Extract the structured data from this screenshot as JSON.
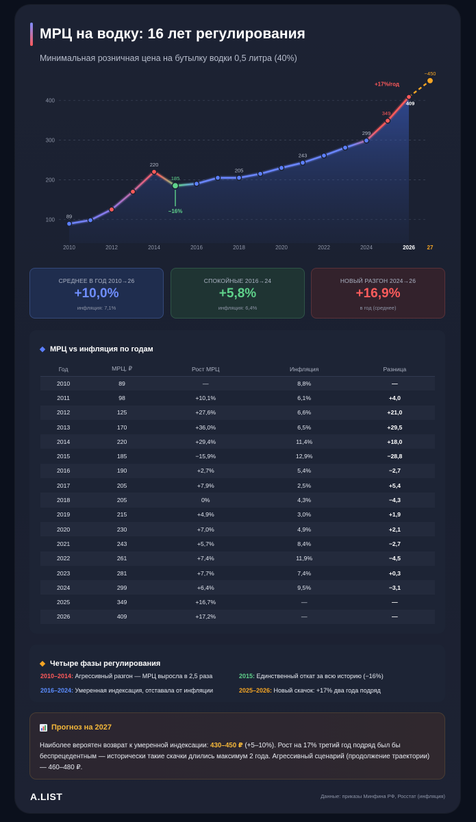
{
  "header": {
    "title": "МРЦ на водку: 16 лет регулирования",
    "subtitle": "Минимальная розничная цена на бутылку водки 0,5 литра (40%)"
  },
  "chart_data": {
    "type": "line",
    "x": [
      2010,
      2011,
      2012,
      2013,
      2014,
      2015,
      2016,
      2017,
      2018,
      2019,
      2020,
      2021,
      2022,
      2023,
      2024,
      2025,
      2026
    ],
    "values": [
      89,
      98,
      125,
      170,
      220,
      185,
      190,
      205,
      205,
      215,
      230,
      243,
      261,
      281,
      299,
      349,
      409
    ],
    "forecast": {
      "x": [
        2026,
        2027
      ],
      "values": [
        409,
        450
      ]
    },
    "x_ticks": [
      "2010",
      "2012",
      "2014",
      "2016",
      "2018",
      "2020",
      "2022",
      "2024",
      "2026",
      "27"
    ],
    "y_ticks": [
      "100",
      "200",
      "300",
      "400"
    ],
    "ylim": [
      40,
      460
    ],
    "grid": true,
    "point_labels": [
      {
        "x": 2010,
        "text": "89"
      },
      {
        "x": 2014,
        "text": "220"
      },
      {
        "x": 2015,
        "text": "185"
      },
      {
        "x": 2018,
        "text": "205"
      },
      {
        "x": 2021,
        "text": "243"
      },
      {
        "x": 2024,
        "text": "299"
      },
      {
        "x": 2025,
        "text": "349"
      },
      {
        "x": 2026,
        "text": "409"
      },
      {
        "x": 2027,
        "text": "~450"
      }
    ],
    "annotations": [
      {
        "x": 2015,
        "text": "−16%"
      },
      {
        "x": 2026,
        "text": "+17%/год"
      }
    ],
    "colors": {
      "aggressive": "#ff5a5a",
      "moderate": "#5b7fff",
      "rollback": "#5fd28b",
      "new_jump": "#ff5a5a",
      "forecast": "#f5a524"
    }
  },
  "stats": {
    "avg": {
      "label": "СРЕДНЕЕ В ГОД 2010→26",
      "value": "+10,0%",
      "note": "инфляция: 7,1%"
    },
    "calm": {
      "label": "СПОКОЙНЫЕ 2016→24",
      "value": "+5,8%",
      "note": "инфляция: 6,4%"
    },
    "surge": {
      "label": "НОВЫЙ РАЗГОН 2024→26",
      "value": "+16,9%",
      "note": "в год (среднее)"
    }
  },
  "table": {
    "title": "МРЦ vs инфляция по годам",
    "columns": [
      "Год",
      "МРЦ, ₽",
      "Рост МРЦ",
      "Инфляция",
      "Разница"
    ],
    "rows": [
      [
        "2010",
        "89",
        "—",
        "8,8%",
        "—"
      ],
      [
        "2011",
        "98",
        "+10,1%",
        "6,1%",
        "+4,0"
      ],
      [
        "2012",
        "125",
        "+27,6%",
        "6,6%",
        "+21,0"
      ],
      [
        "2013",
        "170",
        "+36,0%",
        "6,5%",
        "+29,5"
      ],
      [
        "2014",
        "220",
        "+29,4%",
        "11,4%",
        "+18,0"
      ],
      [
        "2015",
        "185",
        "−15,9%",
        "12,9%",
        "−28,8"
      ],
      [
        "2016",
        "190",
        "+2,7%",
        "5,4%",
        "−2,7"
      ],
      [
        "2017",
        "205",
        "+7,9%",
        "2,5%",
        "+5,4"
      ],
      [
        "2018",
        "205",
        "0%",
        "4,3%",
        "−4,3"
      ],
      [
        "2019",
        "215",
        "+4,9%",
        "3,0%",
        "+1,9"
      ],
      [
        "2020",
        "230",
        "+7,0%",
        "4,9%",
        "+2,1"
      ],
      [
        "2021",
        "243",
        "+5,7%",
        "8,4%",
        "−2,7"
      ],
      [
        "2022",
        "261",
        "+7,4%",
        "11,9%",
        "−4,5"
      ],
      [
        "2023",
        "281",
        "+7,7%",
        "7,4%",
        "+0,3"
      ],
      [
        "2024",
        "299",
        "+6,4%",
        "9,5%",
        "−3,1"
      ],
      [
        "2025",
        "349",
        "+16,7%",
        "—",
        "—"
      ],
      [
        "2026",
        "409",
        "+17,2%",
        "—",
        "—"
      ]
    ]
  },
  "phases": {
    "title": "Четыре фазы регулирования",
    "items": [
      {
        "key": "2010–2014:",
        "text": " Агрессивный разгон — МРЦ выросла в 2,5 раза",
        "color": "#ff5a5a"
      },
      {
        "key": "2015:",
        "text": " Единственный откат за всю историю (−16%)",
        "color": "#5fd28b"
      },
      {
        "key": "2016–2024:",
        "text": " Умеренная индексация, отставала от инфляции",
        "color": "#5b8dff"
      },
      {
        "key": "2025–2026:",
        "text": " Новый скачок: +17% два года подряд",
        "color": "#f5a524"
      }
    ]
  },
  "forecast": {
    "title": "Прогноз на 2027",
    "text_before": "Наиболее вероятен возврат к умеренной индексации: ",
    "highlight": "430–450 ₽",
    "text_after": " (+5–10%). Рост на 17% третий год подряд был бы беспрецедентным — исторически такие скачки длились максимум 2 года. Агрессивный сценарий (продолжение траектории) — 460–480 ₽."
  },
  "footer": {
    "brand": "A.LIST",
    "source": "Данные: приказы Минфина РФ, Росстат (инфляция)"
  }
}
